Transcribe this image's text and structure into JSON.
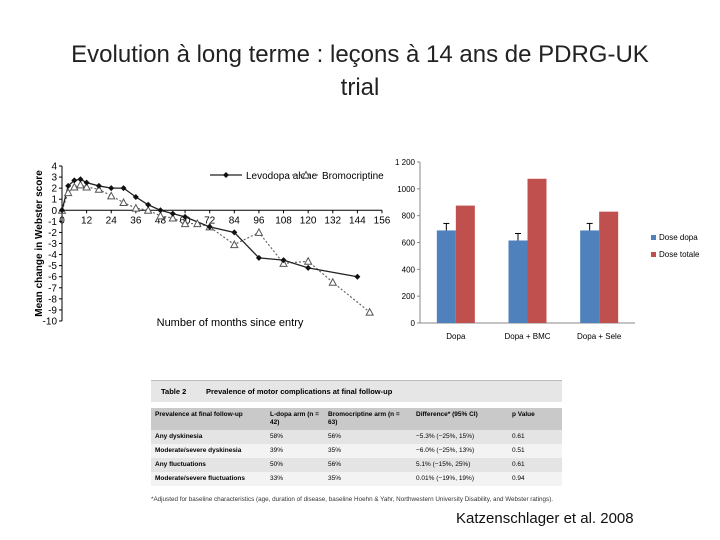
{
  "slide": {
    "title_line1": "Evolution à long terme : leçons à 14 ans de PDRG-UK",
    "title_line2": "trial",
    "citation": "Katzenschlager et al. 2008"
  },
  "chart_data": [
    {
      "type": "line",
      "ylabel": "Mean change in Webster score",
      "xlabel": "Number of months since entry",
      "xlim": [
        0,
        156
      ],
      "ylim": [
        -10,
        4
      ],
      "x_ticks": [
        0,
        12,
        24,
        36,
        48,
        60,
        72,
        84,
        96,
        108,
        120,
        132,
        144,
        156
      ],
      "y_ticks": [
        4,
        3,
        2,
        1,
        0,
        -1,
        -2,
        -3,
        -4,
        -5,
        -6,
        -7,
        -8,
        -9,
        -10
      ],
      "series": [
        {
          "name": "Levodopa alone",
          "x": [
            0,
            3,
            6,
            9,
            12,
            18,
            24,
            30,
            36,
            42,
            48,
            54,
            60,
            72,
            84,
            96,
            108,
            120,
            144
          ],
          "y": [
            0,
            2.2,
            2.7,
            2.8,
            2.5,
            2.2,
            2.0,
            2.0,
            1.2,
            0.5,
            0,
            -0.3,
            -0.6,
            -1.5,
            -2.0,
            -4.3,
            -4.5,
            -5.2,
            -6.0
          ]
        },
        {
          "name": "Bromocriptine",
          "x": [
            0,
            3,
            6,
            9,
            12,
            18,
            24,
            30,
            36,
            42,
            48,
            54,
            60,
            66,
            72,
            84,
            96,
            108,
            120,
            132,
            150
          ],
          "y": [
            0,
            1.6,
            2.1,
            2.3,
            2.1,
            1.9,
            1.3,
            0.7,
            0.2,
            0,
            -0.5,
            -0.7,
            -1.2,
            -1.2,
            -1.5,
            -3.1,
            -2.0,
            -4.8,
            -4.6,
            -6.5,
            -9.2
          ]
        }
      ]
    },
    {
      "type": "bar",
      "categories": [
        "Dopa",
        "Dopa + BMC",
        "Dopa + Sele"
      ],
      "ylim": [
        0,
        1200
      ],
      "y_ticks": [
        0,
        200,
        400,
        600,
        800,
        1000,
        1200
      ],
      "y_tick_labels": [
        "0",
        "200",
        "400",
        "600",
        "800",
        "1000",
        "1 200"
      ],
      "series": [
        {
          "name": "Dose dopa",
          "values": [
            690,
            615,
            690
          ],
          "color": "#4f81bd"
        },
        {
          "name": "Dose totale",
          "values": [
            875,
            1075,
            830
          ],
          "color": "#c0504d"
        }
      ],
      "legend_position": "right"
    }
  ],
  "table2": {
    "number": "Table 2",
    "caption": "Prevalence of motor complications at final follow-up",
    "columns": [
      "Prevalence at final follow-up",
      "L-dopa arm (n = 42)",
      "Bromocriptine arm (n = 63)",
      "Difference* (95% CI)",
      "p Value"
    ],
    "rows": [
      [
        "Any dyskinesia",
        "58%",
        "56%",
        "−5.3% (−25%, 15%)",
        "0.61"
      ],
      [
        "Moderate/severe dyskinesia",
        "39%",
        "35%",
        "−6.0% (−25%, 13%)",
        "0.51"
      ],
      [
        "Any fluctuations",
        "50%",
        "56%",
        "5.1% (−15%, 25%)",
        "0.61"
      ],
      [
        "Moderate/severe fluctuations",
        "33%",
        "35%",
        "0.01% (−19%, 19%)",
        "0.94"
      ]
    ],
    "footnote": "*Adjusted for baseline characteristics (age, duration of disease, baseline Hoehn & Yahr, Northwestern University Disability, and Webster ratings)."
  }
}
